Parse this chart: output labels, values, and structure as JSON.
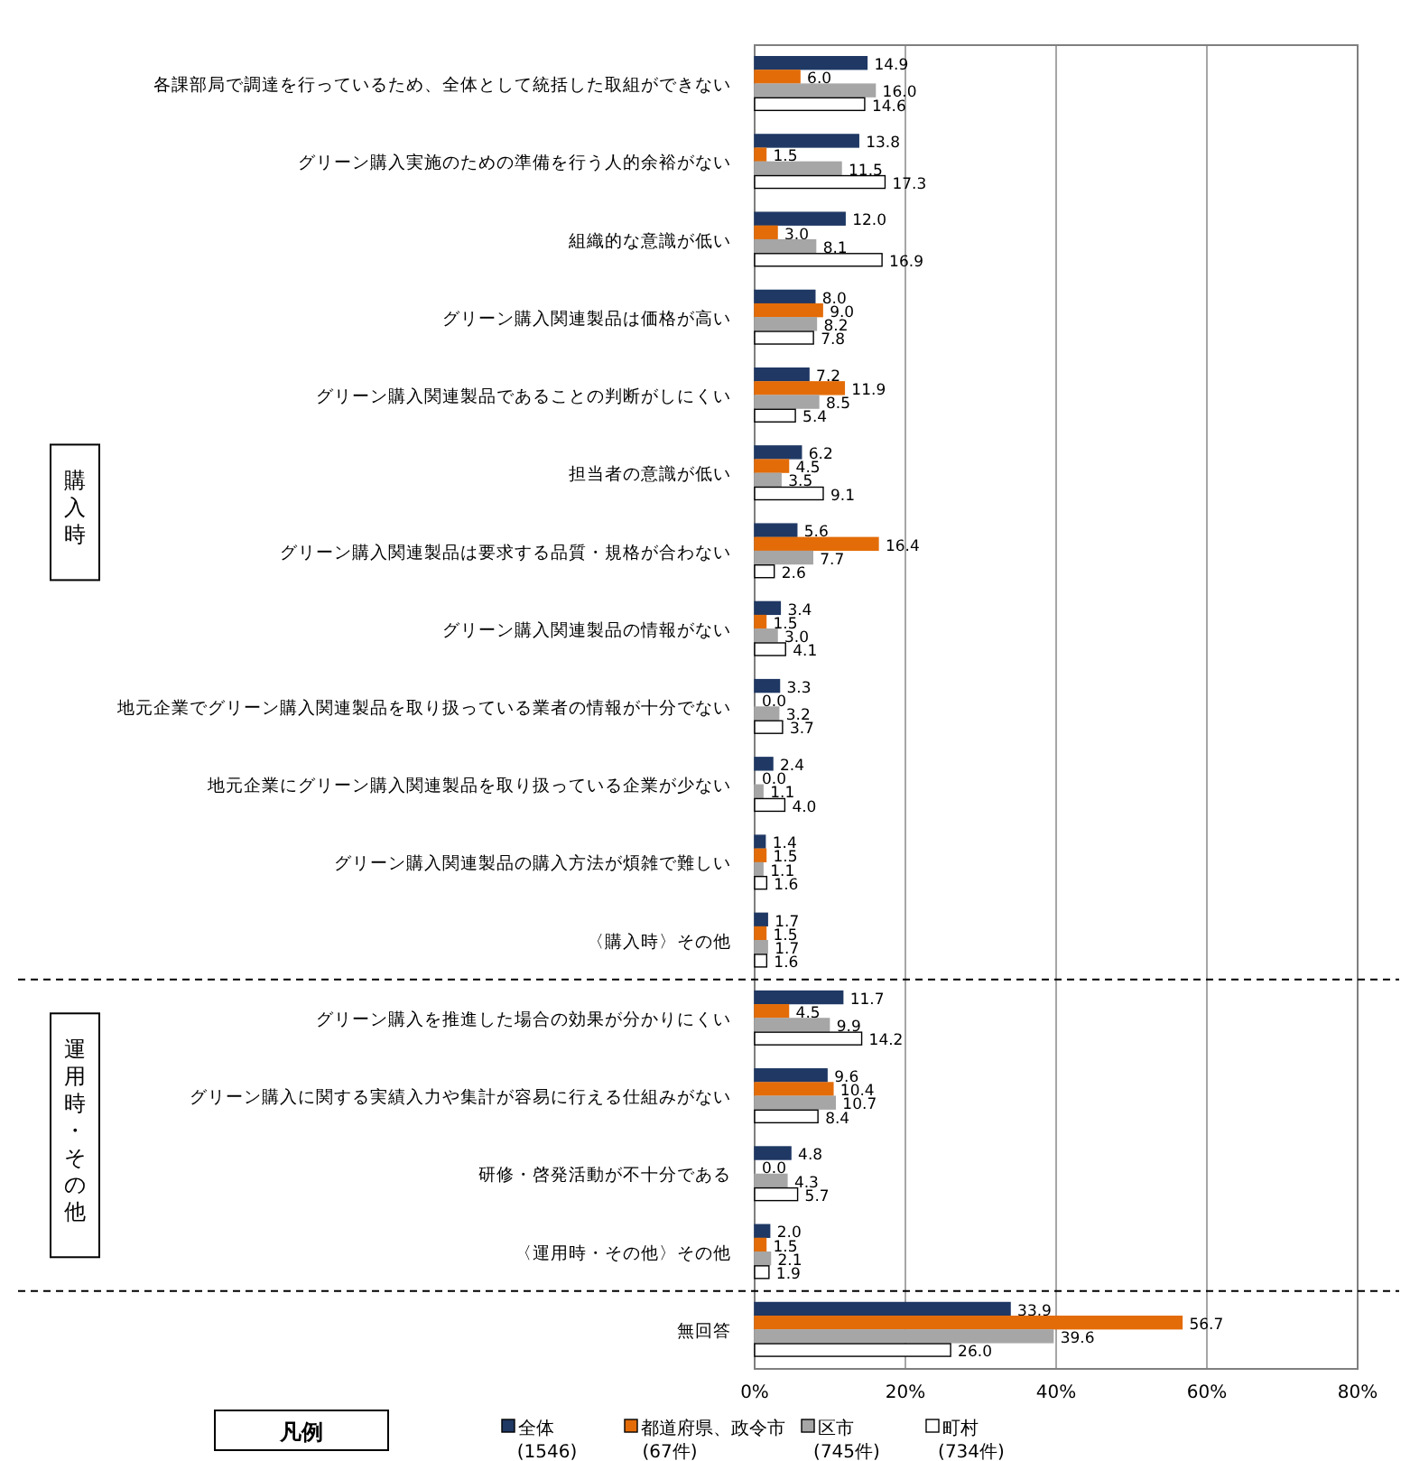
{
  "chart_data": {
    "type": "bar",
    "orientation": "horizontal",
    "legend_title": "凡例",
    "legend": "bottom",
    "grid": "x",
    "annotations": [
      "購入時",
      "運用時・その他"
    ],
    "categories": [
      "各課部局で調達を行っているため、全体として統括した取組ができない",
      "グリーン購入実施のための準備を行う人的余裕がない",
      "組織的な意識が低い",
      "グリーン購入関連製品は価格が高い",
      "グリーン購入関連製品であることの判断がしにくい",
      "担当者の意識が低い",
      "グリーン購入関連製品は要求する品質・規格が合わない",
      "グリーン購入関連製品の情報がない",
      "地元企業でグリーン購入関連製品を取り扱っている業者の情報が十分でない",
      "地元企業にグリーン購入関連製品を取り扱っている企業が少ない",
      "グリーン購入関連製品の購入方法が煩雑で難しい",
      "〈購入時〉その他",
      "グリーン購入を推進した場合の効果が分かりにくい",
      "グリーン購入に関する実績入力や集計が容易に行える仕組みがない",
      "研修・啓発活動が不十分である",
      "〈運用時・その他〉その他",
      "無回答"
    ],
    "xlim": [
      0,
      80
    ],
    "xticks": [
      {
        "value": 0,
        "label": "0%"
      },
      {
        "value": 20,
        "label": "20%"
      },
      {
        "value": 40,
        "label": "40%"
      },
      {
        "value": 60,
        "label": "60%"
      },
      {
        "value": 80,
        "label": "80%"
      }
    ],
    "series": [
      {
        "name": "全体\n(1546)",
        "color": "#1f3864",
        "values": [
          14.9,
          13.8,
          12.0,
          8.0,
          7.2,
          6.2,
          5.6,
          3.4,
          3.3,
          2.4,
          1.4,
          1.7,
          11.7,
          9.6,
          4.8,
          2.0,
          33.9
        ],
        "value_labels": [
          "14.9",
          "13.8",
          "12.0",
          "8.0",
          "7.2",
          "6.2",
          "5.6",
          "3.4",
          "3.3",
          "2.4",
          "1.4",
          "1.7",
          "11.7",
          "9.6",
          "4.8",
          "2.0",
          "33.9"
        ]
      },
      {
        "name": "都道府県、政令市\n(67件)",
        "color": "#e36c09",
        "values": [
          6.0,
          1.5,
          3.0,
          9.0,
          11.9,
          4.5,
          16.4,
          1.5,
          0.0,
          0.0,
          1.5,
          1.5,
          4.5,
          10.4,
          0.0,
          1.5,
          56.7
        ],
        "value_labels": [
          "6.0",
          "1.5",
          "3.0",
          "9.0",
          "11.9",
          "4.5",
          "16.4",
          "1.5",
          "0.0",
          "0.0",
          "1.5",
          "1.5",
          "4.5",
          "10.4",
          "0.0",
          "1.5",
          "56.7"
        ]
      },
      {
        "name": "区市\n(745件)",
        "color": "#a6a6a6",
        "values": [
          16.0,
          11.5,
          8.1,
          8.2,
          8.5,
          3.5,
          7.7,
          3.0,
          3.2,
          1.1,
          1.1,
          1.7,
          9.9,
          10.7,
          4.3,
          2.1,
          39.6
        ],
        "value_labels": [
          "16.0",
          "11.5",
          "8.1",
          "8.2",
          "8.5",
          "3.5",
          "7.7",
          "3.0",
          "3.2",
          "1.1",
          "1.1",
          "1.7",
          "9.9",
          "10.7",
          "4.3",
          "2.1",
          "39.6"
        ]
      },
      {
        "name": "町村\n(734件)",
        "color": "#ffffff",
        "values": [
          14.6,
          17.3,
          16.9,
          7.8,
          5.4,
          9.1,
          2.6,
          4.1,
          3.7,
          4.0,
          1.6,
          1.6,
          14.2,
          8.4,
          5.7,
          1.9,
          26.0
        ],
        "value_labels": [
          "14.6",
          "17.3",
          "16.9",
          "7.8",
          "5.4",
          "9.1",
          "2.6",
          "4.1",
          "3.7",
          "4.0",
          "1.6",
          "1.6",
          "14.2",
          "8.4",
          "5.7",
          "1.9",
          "26.0"
        ]
      }
    ]
  }
}
